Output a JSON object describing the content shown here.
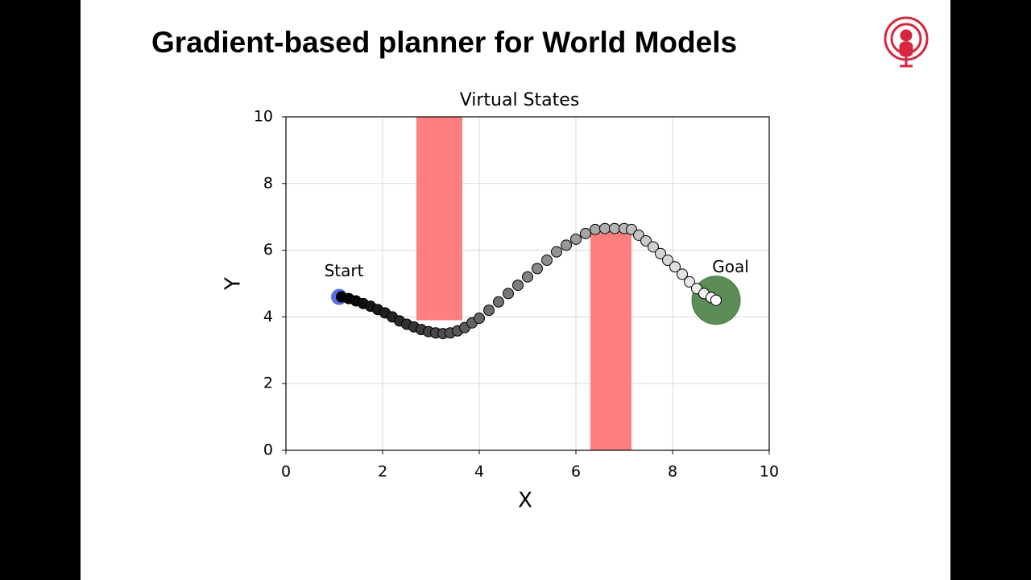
{
  "slide": {
    "title": "Gradient-based planner for World Models"
  },
  "chart_data": {
    "type": "scatter",
    "title": "Virtual States",
    "xlabel": "X",
    "ylabel": "Y",
    "xlim": [
      0,
      10
    ],
    "ylim": [
      0,
      10
    ],
    "xticks": [
      0,
      2,
      4,
      6,
      8,
      10
    ],
    "yticks": [
      0,
      2,
      4,
      6,
      8,
      10
    ],
    "grid": true,
    "obstacles": [
      {
        "x": [
          2.7,
          3.65
        ],
        "y": [
          3.9,
          10
        ],
        "color": "#ff7f7f"
      },
      {
        "x": [
          6.3,
          7.15
        ],
        "y": [
          0,
          6.6
        ],
        "color": "#ff7f7f"
      }
    ],
    "start": {
      "label": "Start",
      "x": 1.1,
      "y": 4.6,
      "color": "#4a5fe0"
    },
    "goal": {
      "label": "Goal",
      "x": 8.9,
      "y": 4.5,
      "radius": 0.5,
      "color": "#4a7f45"
    },
    "trajectory": {
      "x": [
        1.15,
        1.3,
        1.45,
        1.6,
        1.75,
        1.9,
        2.05,
        2.2,
        2.35,
        2.5,
        2.65,
        2.8,
        2.95,
        3.1,
        3.25,
        3.4,
        3.55,
        3.7,
        3.85,
        4.0,
        4.2,
        4.4,
        4.6,
        4.8,
        5.0,
        5.2,
        5.4,
        5.6,
        5.8,
        6.0,
        6.2,
        6.4,
        6.6,
        6.8,
        7.0,
        7.15,
        7.3,
        7.45,
        7.6,
        7.75,
        7.9,
        8.05,
        8.2,
        8.35,
        8.5,
        8.65,
        8.8,
        8.9
      ],
      "y": [
        4.6,
        4.55,
        4.48,
        4.4,
        4.32,
        4.22,
        4.12,
        4.0,
        3.88,
        3.78,
        3.7,
        3.62,
        3.56,
        3.52,
        3.5,
        3.52,
        3.58,
        3.68,
        3.82,
        3.96,
        4.2,
        4.45,
        4.7,
        4.95,
        5.2,
        5.45,
        5.7,
        5.95,
        6.15,
        6.33,
        6.5,
        6.62,
        6.65,
        6.65,
        6.65,
        6.62,
        6.45,
        6.28,
        6.1,
        5.9,
        5.7,
        5.5,
        5.28,
        5.05,
        4.85,
        4.7,
        4.58,
        4.5
      ]
    }
  }
}
